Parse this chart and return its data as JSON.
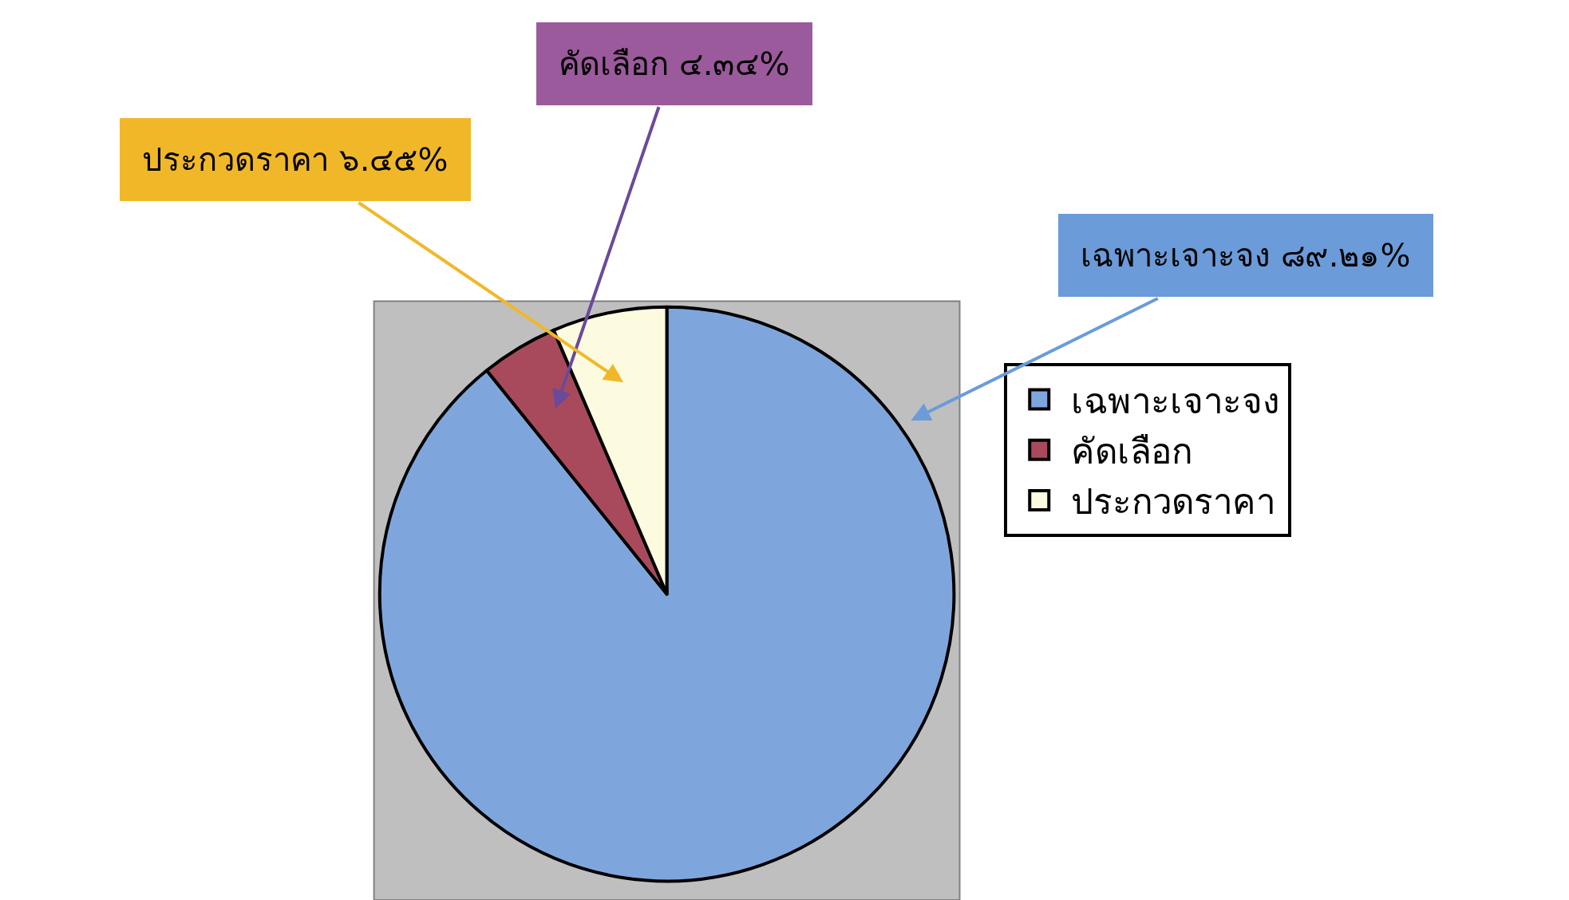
{
  "chart_data": {
    "type": "pie",
    "categories": [
      "เฉพาะเจาะจง",
      "คัดเลือก",
      "ประกวดราคา"
    ],
    "values": [
      89.21,
      4.34,
      6.45
    ],
    "colors": [
      "#7fa6dc",
      "#a94a5c",
      "#fcfadf"
    ],
    "value_labels": [
      "เฉพาะเจาะจง ๘๙.๒๑%",
      "คัดเลือก ๔.๓๔%",
      "ประกวดราคา ๖.๔๕%"
    ],
    "legend": "right"
  }
}
